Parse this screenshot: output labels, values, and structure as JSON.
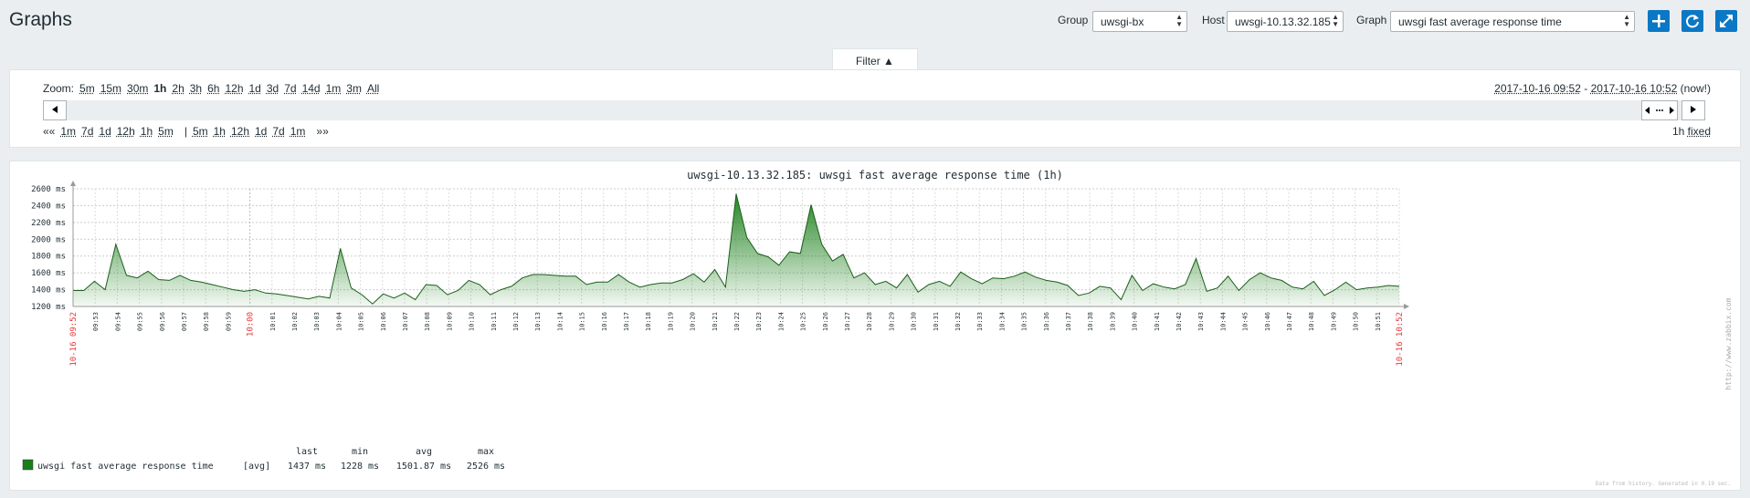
{
  "header": {
    "title": "Graphs",
    "group_label": "Group",
    "group_value": "uwsgi-bx",
    "host_label": "Host",
    "host_value": "uwsgi-10.13.32.185",
    "graph_label": "Graph",
    "graph_value": "uwsgi fast average response time",
    "buttons": [
      "plus-icon",
      "refresh-icon",
      "fullscreen-icon"
    ],
    "accent_color": "#0b78c6"
  },
  "filter": {
    "tab_label": "Filter ▲",
    "zoom_label": "Zoom:",
    "zoom_options": [
      "5m",
      "15m",
      "30m",
      "1h",
      "2h",
      "3h",
      "6h",
      "12h",
      "1d",
      "3d",
      "7d",
      "14d",
      "1m",
      "3m",
      "All"
    ],
    "zoom_active": "1h",
    "range_from": "2017-10-16 09:52",
    "range_separator": " - ",
    "range_to": "2017-10-16 10:52",
    "range_now": "(now!)",
    "back_prefix": "««",
    "back_options": [
      "1m",
      "7d",
      "1d",
      "12h",
      "1h",
      "5m"
    ],
    "separator": "|",
    "forward_options": [
      "5m",
      "1h",
      "12h",
      "1d",
      "7d",
      "1m"
    ],
    "forward_suffix": "»»",
    "period": "1h",
    "fixed_label": "fixed"
  },
  "graph": {
    "watermark": "http://www.zabbix.com",
    "footer_note": "Data from history. Generated in 0.19 sec."
  },
  "chart_data": {
    "type": "area",
    "title": "uwsgi-10.13.32.185: uwsgi  fast average response time (1h)",
    "ylabel": "",
    "xlabel": "",
    "ylim": [
      1200,
      2600
    ],
    "yticks": [
      "1200 ms",
      "1400 ms",
      "1600 ms",
      "1800 ms",
      "2000 ms",
      "2200 ms",
      "2400 ms",
      "2600 ms"
    ],
    "x_start_label": "10-16 09:52",
    "x_end_label": "10-16 10:52",
    "x_hour_label": "10:00",
    "x_ticks": [
      "09:53",
      "09:54",
      "09:55",
      "09:56",
      "09:57",
      "09:58",
      "09:59",
      "10:00",
      "10:01",
      "10:02",
      "10:03",
      "10:04",
      "10:05",
      "10:06",
      "10:07",
      "10:08",
      "10:09",
      "10:10",
      "10:11",
      "10:12",
      "10:13",
      "10:14",
      "10:15",
      "10:16",
      "10:17",
      "10:18",
      "10:19",
      "10:20",
      "10:21",
      "10:22",
      "10:23",
      "10:24",
      "10:25",
      "10:26",
      "10:27",
      "10:28",
      "10:29",
      "10:30",
      "10:31",
      "10:32",
      "10:33",
      "10:34",
      "10:35",
      "10:36",
      "10:37",
      "10:38",
      "10:39",
      "10:40",
      "10:41",
      "10:42",
      "10:43",
      "10:44",
      "10:45",
      "10:46",
      "10:47",
      "10:48",
      "10:49",
      "10:50",
      "10:51",
      "10:52"
    ],
    "grid": true,
    "series": [
      {
        "name": "uwsgi fast average response time",
        "color": "#1a7f1a",
        "values": [
          1390,
          1390,
          1500,
          1400,
          1940,
          1570,
          1540,
          1620,
          1520,
          1510,
          1570,
          1510,
          1490,
          1460,
          1430,
          1400,
          1380,
          1400,
          1360,
          1350,
          1330,
          1310,
          1290,
          1320,
          1300,
          1890,
          1420,
          1340,
          1230,
          1350,
          1300,
          1360,
          1280,
          1460,
          1450,
          1340,
          1390,
          1510,
          1460,
          1340,
          1400,
          1440,
          1540,
          1580,
          1580,
          1570,
          1560,
          1560,
          1460,
          1490,
          1490,
          1580,
          1490,
          1430,
          1460,
          1480,
          1480,
          1520,
          1590,
          1490,
          1640,
          1430,
          2540,
          2020,
          1830,
          1790,
          1690,
          1850,
          1830,
          2410,
          1940,
          1740,
          1820,
          1540,
          1600,
          1460,
          1500,
          1420,
          1580,
          1370,
          1460,
          1500,
          1440,
          1610,
          1530,
          1470,
          1540,
          1530,
          1560,
          1610,
          1550,
          1510,
          1490,
          1450,
          1330,
          1360,
          1440,
          1420,
          1280,
          1570,
          1390,
          1470,
          1430,
          1410,
          1460,
          1770,
          1380,
          1420,
          1560,
          1390,
          1520,
          1600,
          1540,
          1510,
          1430,
          1410,
          1500,
          1330,
          1400,
          1490,
          1400,
          1420,
          1430,
          1450,
          1440
        ]
      }
    ],
    "legend": {
      "item": "uwsgi fast average response time",
      "func": "[avg]",
      "headers": [
        "last",
        "min",
        "avg",
        "max"
      ],
      "values": [
        "1437 ms",
        "1228 ms",
        "1501.87 ms",
        "2526 ms"
      ]
    }
  }
}
